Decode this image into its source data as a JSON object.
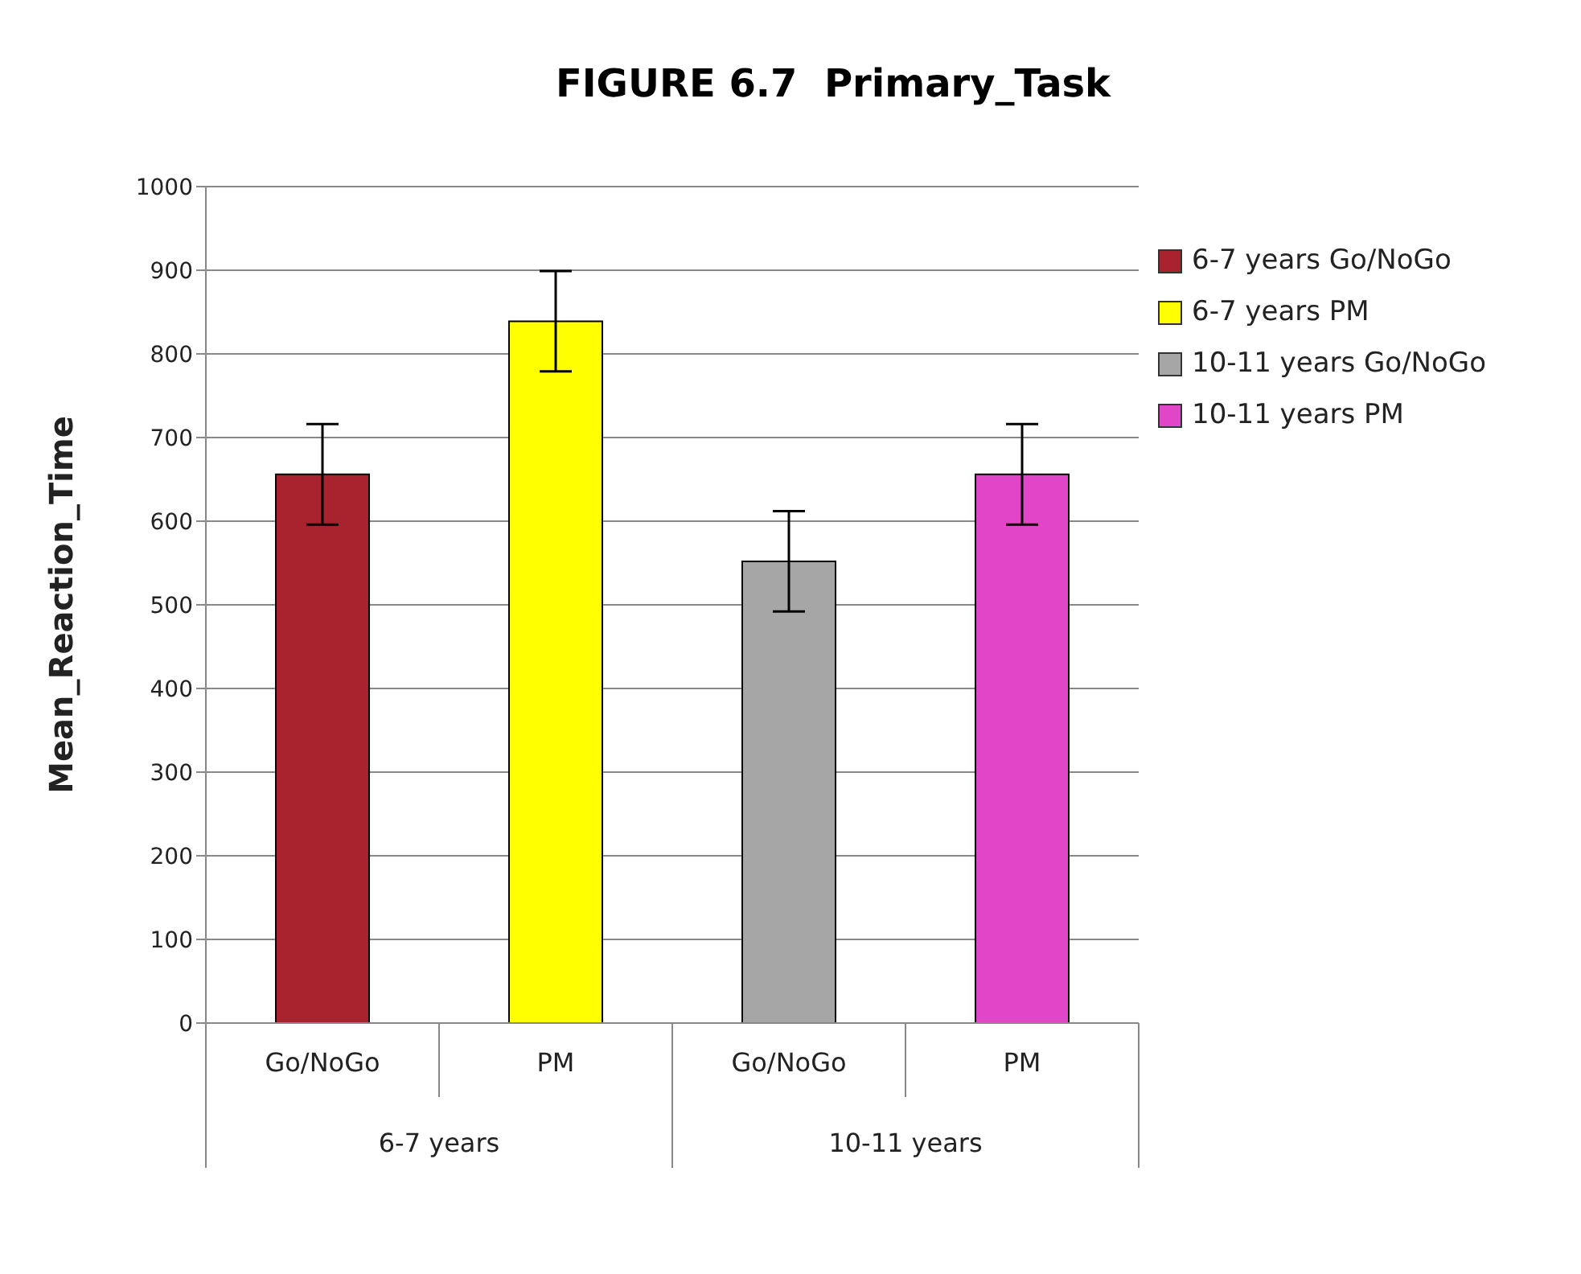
{
  "chart_data": {
    "type": "bar",
    "title": "FIGURE 6.7  Primary_Task",
    "ylabel": "Mean_Reaction_Time",
    "categories": [
      "Go/NoGo",
      "PM",
      "Go/NoGo",
      "PM"
    ],
    "annotations": [
      "6-7 years",
      "10-11 years"
    ],
    "series": [
      {
        "name": "6-7 years Go/NoGo",
        "color": "#a8232e",
        "values": [
          656,
          null,
          null,
          null
        ],
        "errors": [
          60,
          null,
          null,
          null
        ]
      },
      {
        "name": "6-7 years PM",
        "color": "#ffff00",
        "values": [
          null,
          839,
          null,
          null
        ],
        "errors": [
          null,
          60,
          null,
          null
        ]
      },
      {
        "name": "10-11 years Go/NoGo",
        "color": "#a6a6a6",
        "values": [
          null,
          null,
          552,
          null
        ],
        "errors": [
          null,
          null,
          60,
          null
        ]
      },
      {
        "name": "10-11 years PM",
        "color": "#e246c8",
        "values": [
          null,
          null,
          null,
          656
        ],
        "errors": [
          null,
          null,
          null,
          60
        ]
      }
    ],
    "ylim": [
      0,
      1000
    ],
    "yticks": [
      0,
      100,
      200,
      300,
      400,
      500,
      600,
      700,
      800,
      900,
      1000
    ],
    "grid": "y",
    "legend": "right"
  }
}
